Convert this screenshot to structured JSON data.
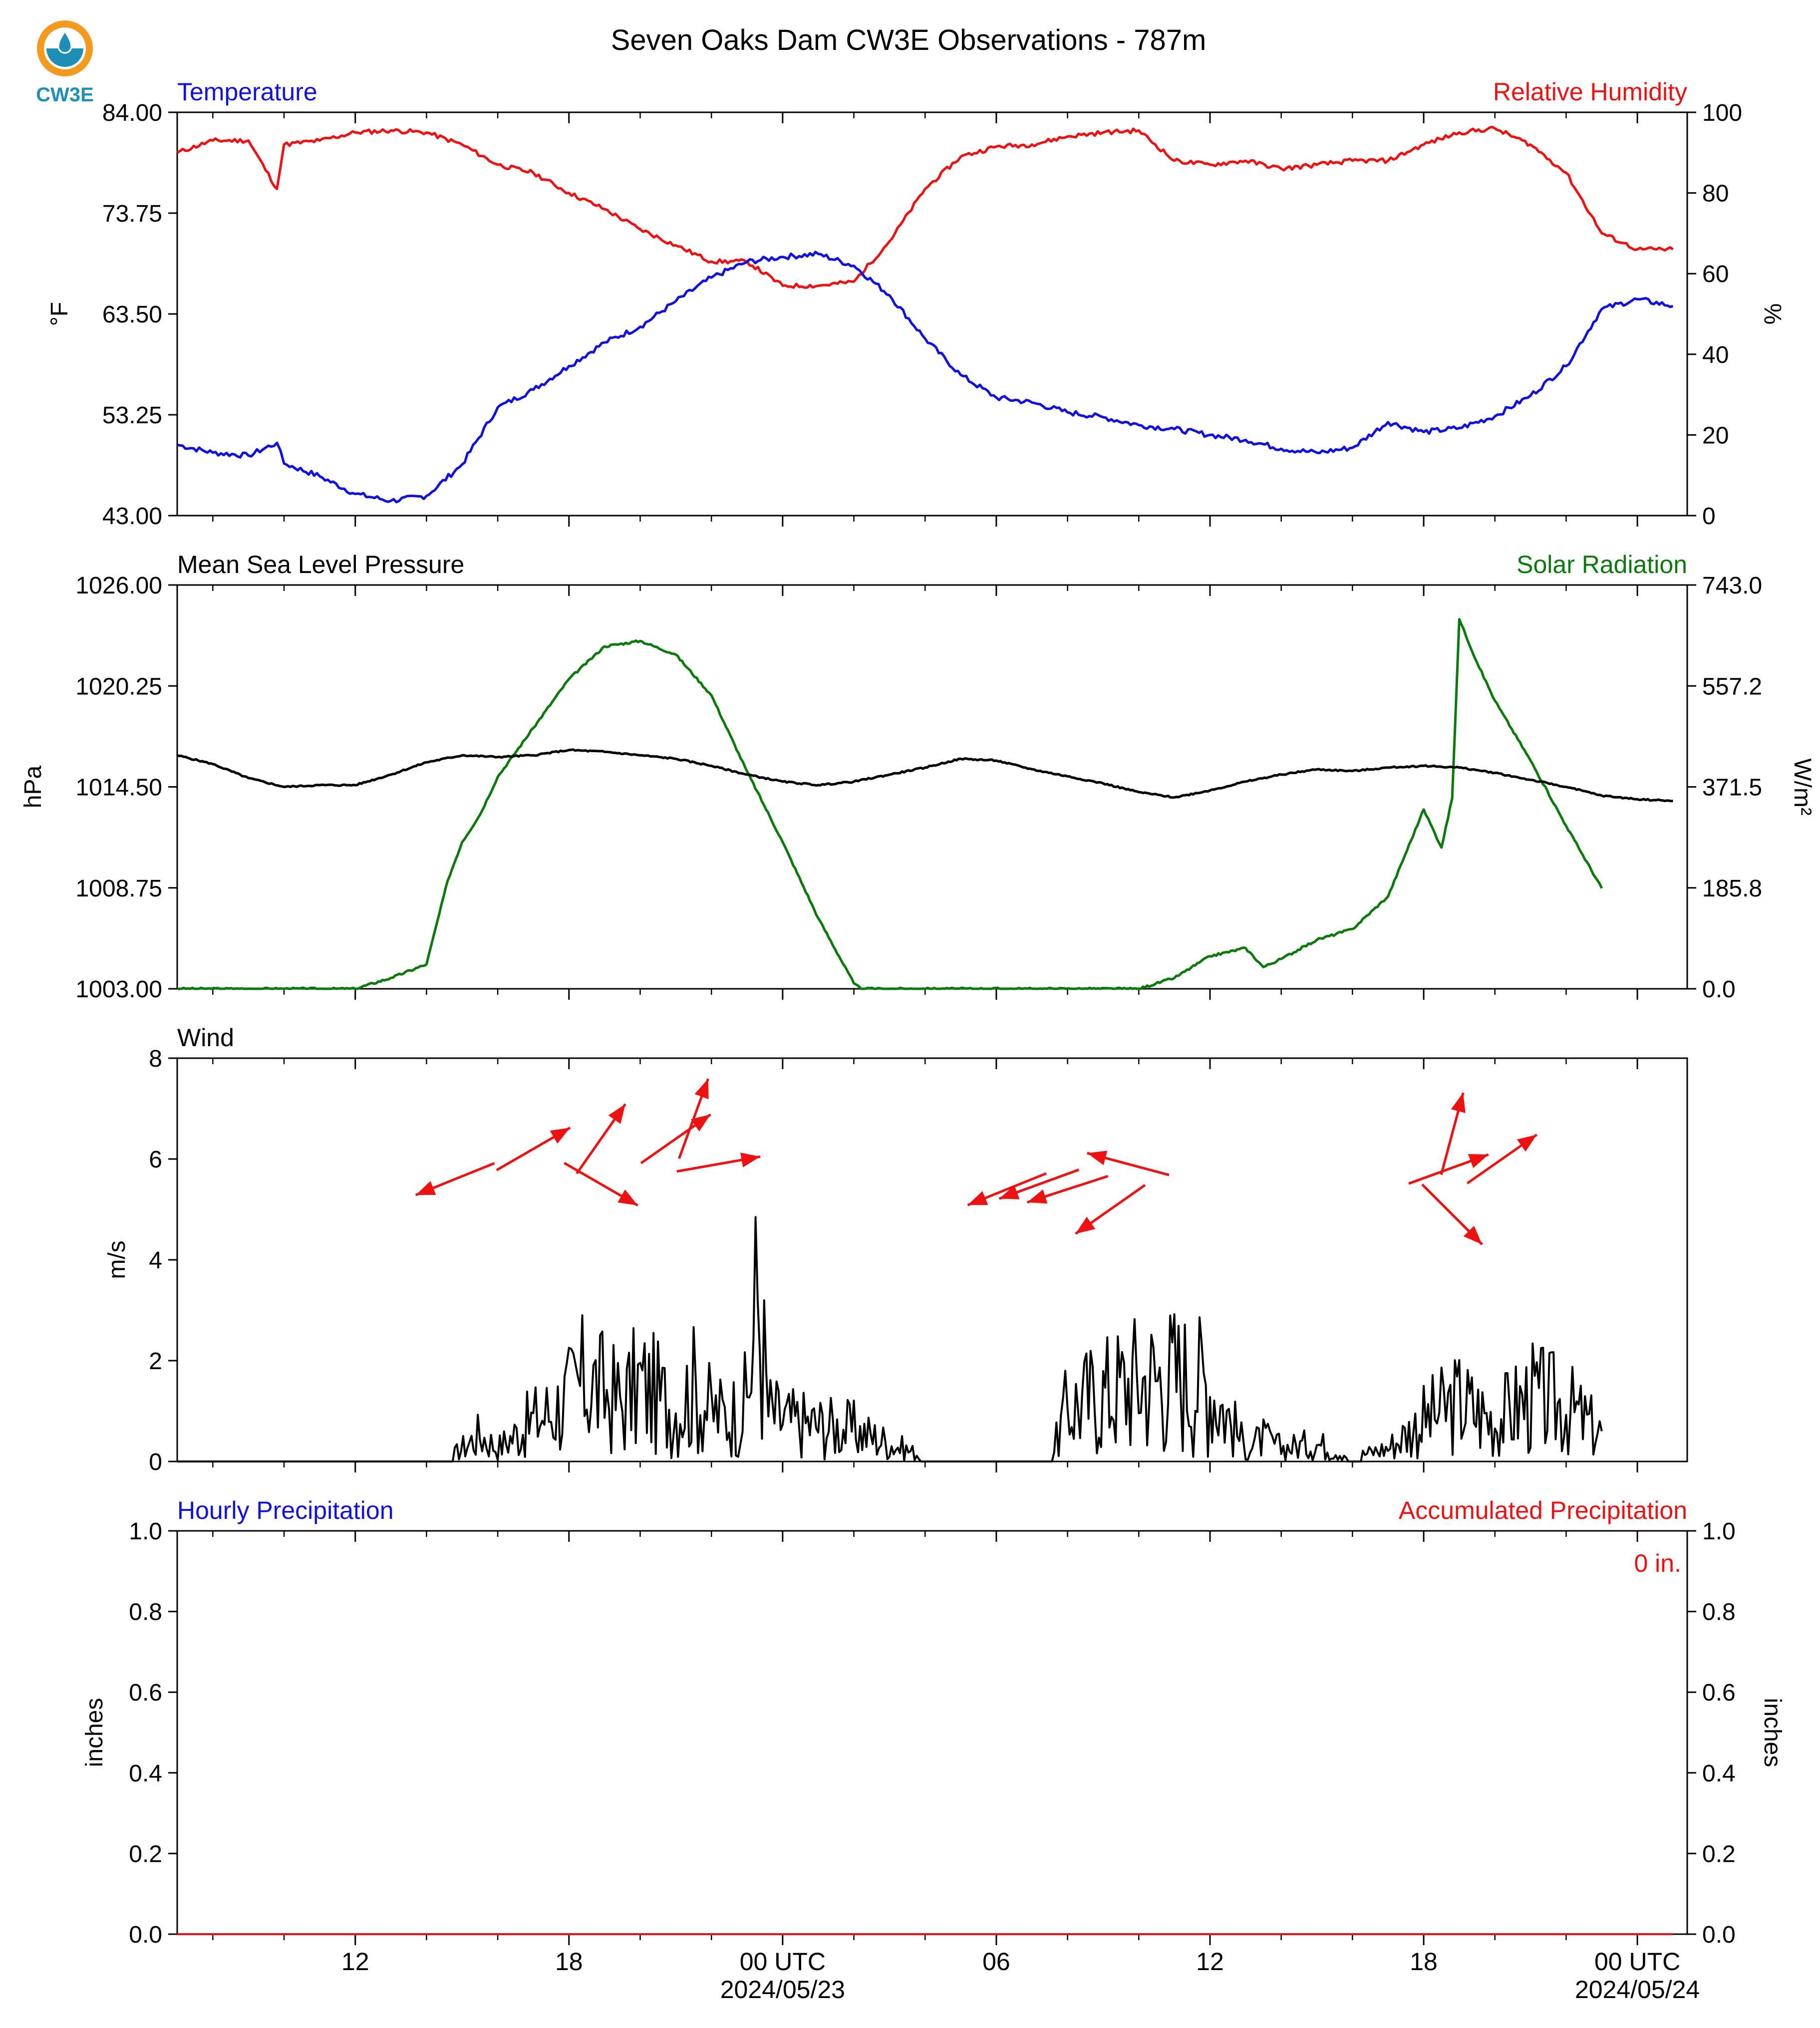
{
  "logo": {
    "text": "CW3E",
    "colors": {
      "orange": "#f39a1f",
      "teal": "#1f8fb8"
    }
  },
  "title": "Seven Oaks Dam CW3E Observations - 787m",
  "x_axis": {
    "tick_labels": [
      "12",
      "18",
      "00 UTC",
      "06",
      "12",
      "18",
      "00 UTC"
    ],
    "date_labels": [
      "2024/05/23",
      "2024/05/24"
    ]
  },
  "colors": {
    "blue": "#1010e0",
    "red": "#ee1111",
    "green": "#0a7a0a",
    "black": "#000000"
  },
  "chart_data": [
    {
      "type": "line",
      "panel": "temperature-humidity",
      "left_title": "Temperature",
      "right_title": "Relative Humidity",
      "ylabel": "°F",
      "y2label": "%",
      "ylim": [
        43,
        84
      ],
      "y2lim": [
        0,
        100
      ],
      "yticks": [
        "84.00",
        "73.75",
        "63.50",
        "53.25",
        "43.00"
      ],
      "y2ticks": [
        "100",
        "80",
        "60",
        "40",
        "20",
        "0"
      ],
      "grid": false,
      "x_hours": [
        7,
        8,
        9,
        9.8,
        10,
        11,
        12,
        13,
        14,
        15,
        16,
        17,
        18,
        19,
        20,
        21,
        22,
        23,
        24,
        25,
        26,
        27,
        28,
        29,
        30,
        31,
        32,
        33,
        34,
        35,
        36,
        37,
        38,
        39,
        40,
        41,
        42,
        43,
        44,
        45,
        46,
        47,
        48,
        49
      ],
      "series": [
        {
          "name": "Temperature",
          "axis": "left",
          "color": "#1010e0",
          "values": [
            50.2,
            49.4,
            49.1,
            50.4,
            48.3,
            47.0,
            45.2,
            44.5,
            45.0,
            48.2,
            54.0,
            55.8,
            58.2,
            60.6,
            62.2,
            64.8,
            67.2,
            68.8,
            69.3,
            69.6,
            68.4,
            65.4,
            61.0,
            57.3,
            55.0,
            54.5,
            53.5,
            53.0,
            52.2,
            51.8,
            51.2,
            50.7,
            49.8,
            49.4,
            49.9,
            52.5,
            51.5,
            51.9,
            53.1,
            55.2,
            58.2,
            64.0,
            65.0,
            64.3
          ]
        },
        {
          "name": "Relative Humidity",
          "axis": "right",
          "color": "#ee1111",
          "values": [
            90.0,
            93.0,
            93.0,
            81.0,
            92.0,
            93.0,
            95.0,
            95.5,
            95.0,
            92.0,
            87.0,
            85.0,
            80.0,
            76.0,
            71.0,
            67.0,
            63.0,
            63.0,
            57.0,
            57.0,
            58.0,
            68.0,
            81.0,
            89.0,
            91.5,
            92.0,
            94.0,
            95.0,
            95.5,
            88.0,
            87.0,
            88.0,
            86.0,
            87.0,
            88.0,
            88.0,
            92.0,
            95.0,
            96.0,
            92.0,
            85.0,
            70.0,
            66.0,
            66.0
          ]
        }
      ]
    },
    {
      "type": "line",
      "panel": "pressure-solar",
      "left_title": "Mean Sea Level Pressure",
      "right_title": "Solar Radiation",
      "ylabel": "hPa",
      "y2label": "W/m²",
      "ylim": [
        1003,
        1026
      ],
      "y2lim": [
        0,
        743
      ],
      "yticks": [
        "1026.00",
        "1020.25",
        "1014.50",
        "1008.75",
        "1003.00"
      ],
      "y2ticks": [
        "743.0",
        "557.2",
        "371.5",
        "185.8",
        "0.0"
      ],
      "grid": false,
      "series": [
        {
          "name": "Mean Sea Level Pressure",
          "axis": "left",
          "color": "#000000",
          "x_hours": [
            7,
            8,
            9,
            10,
            11,
            12,
            13,
            14,
            15,
            16,
            17,
            18,
            19,
            20,
            21,
            22,
            23,
            24,
            25,
            26,
            27,
            28,
            29,
            30,
            31,
            32,
            33,
            34,
            35,
            36,
            37,
            38,
            39,
            40,
            41,
            42,
            43,
            44,
            45,
            46,
            47,
            48,
            49
          ],
          "values": [
            1016.3,
            1015.8,
            1015.0,
            1014.5,
            1014.6,
            1014.6,
            1015.2,
            1015.9,
            1016.3,
            1016.2,
            1016.3,
            1016.6,
            1016.5,
            1016.3,
            1016.1,
            1015.7,
            1015.2,
            1014.8,
            1014.6,
            1014.8,
            1015.2,
            1015.6,
            1016.1,
            1016.0,
            1015.5,
            1015.1,
            1014.7,
            1014.2,
            1013.9,
            1014.3,
            1014.8,
            1015.2,
            1015.5,
            1015.4,
            1015.6,
            1015.7,
            1015.6,
            1015.3,
            1014.9,
            1014.5,
            1014.0,
            1013.8,
            1013.7
          ]
        },
        {
          "name": "Solar Radiation",
          "axis": "right",
          "color": "#0a7a0a",
          "x_hours": [
            7,
            12,
            13,
            14,
            14.6,
            15,
            15.5,
            16,
            17,
            18,
            19,
            20,
            21,
            22,
            23,
            24,
            25,
            26,
            26.2,
            27,
            31,
            34,
            35,
            36,
            37,
            37.5,
            38,
            39,
            40,
            41,
            42,
            42.5,
            42.8,
            43,
            43.5,
            44,
            45,
            46,
            47
          ],
          "values": [
            0,
            0,
            20,
            45,
            200,
            270,
            320,
            390,
            480,
            570,
            630,
            640,
            615,
            540,
            400,
            270,
            130,
            10,
            0,
            0,
            0,
            0,
            20,
            60,
            75,
            40,
            55,
            90,
            110,
            170,
            330,
            260,
            350,
            680,
            600,
            530,
            420,
            300,
            185
          ]
        }
      ]
    },
    {
      "type": "line",
      "panel": "wind",
      "left_title": "Wind",
      "ylabel": "m/s",
      "ylim": [
        0,
        8
      ],
      "yticks": [
        "8",
        "6",
        "4",
        "2",
        "0"
      ],
      "grid": false,
      "series": [
        {
          "name": "Wind Speed",
          "color": "#000000",
          "x_hours": [
            7,
            9,
            9.5,
            9.6,
            10,
            14.5,
            15.5,
            16,
            17,
            17.5,
            18,
            18.5,
            19,
            19.5,
            20,
            20.5,
            21,
            21.5,
            22,
            22.5,
            23,
            23.3,
            23.6,
            24,
            25,
            26,
            27,
            28,
            29,
            30,
            31,
            31.5,
            32,
            33,
            34,
            35,
            36,
            37,
            37.5,
            38,
            39,
            40,
            41,
            42,
            42.5,
            43,
            44,
            45,
            46,
            47
          ],
          "values": [
            0,
            0,
            0.15,
            0,
            0,
            0,
            0.6,
            0.3,
            0.9,
            1.1,
            1.4,
            1.8,
            1.5,
            1.3,
            1.7,
            1.4,
            1.2,
            1.6,
            1.1,
            1.0,
            1.3,
            3.7,
            1.1,
            0.9,
            0.8,
            0.7,
            0.4,
            0.1,
            0.1,
            0.1,
            0,
            0,
            1.2,
            1.5,
            1.8,
            1.9,
            1.7,
            0.3,
            0.5,
            0.3,
            0.4,
            0.1,
            0.3,
            0.9,
            1.1,
            1.3,
            0.9,
            1.4,
            1.2,
            0.6
          ]
        }
      ],
      "wind_barbs": [
        {
          "hour": 14.8,
          "speed": 5.6,
          "dir_deg": 248
        },
        {
          "hour": 17.0,
          "speed": 6.2,
          "dir_deg": 60
        },
        {
          "hour": 18.9,
          "speed": 6.4,
          "dir_deg": 35
        },
        {
          "hour": 18.9,
          "speed": 5.5,
          "dir_deg": 120
        },
        {
          "hour": 21.0,
          "speed": 6.4,
          "dir_deg": 55
        },
        {
          "hour": 21.5,
          "speed": 6.8,
          "dir_deg": 20
        },
        {
          "hour": 22.2,
          "speed": 5.9,
          "dir_deg": 80
        },
        {
          "hour": 30.3,
          "speed": 5.4,
          "dir_deg": 248
        },
        {
          "hour": 31.2,
          "speed": 5.5,
          "dir_deg": 250
        },
        {
          "hour": 32.0,
          "speed": 5.4,
          "dir_deg": 252
        },
        {
          "hour": 33.2,
          "speed": 5.0,
          "dir_deg": 235
        },
        {
          "hour": 33.7,
          "speed": 5.9,
          "dir_deg": 285
        },
        {
          "hour": 42.7,
          "speed": 5.8,
          "dir_deg": 70
        },
        {
          "hour": 42.8,
          "speed": 6.5,
          "dir_deg": 15
        },
        {
          "hour": 42.8,
          "speed": 4.9,
          "dir_deg": 135
        },
        {
          "hour": 44.2,
          "speed": 6.0,
          "dir_deg": 55
        }
      ]
    },
    {
      "type": "line",
      "panel": "precipitation",
      "left_title": "Hourly Precipitation",
      "right_title": "Accumulated Precipitation",
      "ylabel": "inches",
      "y2label": "inches",
      "ylim": [
        0,
        1
      ],
      "y2lim": [
        0,
        1
      ],
      "yticks": [
        "1.0",
        "0.8",
        "0.6",
        "0.4",
        "0.2",
        "0.0"
      ],
      "y2ticks": [
        "1.0",
        "0.8",
        "0.6",
        "0.4",
        "0.2",
        "0.0"
      ],
      "annotation": "0 in.",
      "grid": false,
      "series": [
        {
          "name": "Hourly Precipitation",
          "axis": "left",
          "color": "#1010e0",
          "x_hours": [
            7,
            49
          ],
          "values": [
            0,
            0
          ]
        },
        {
          "name": "Accumulated Precipitation",
          "axis": "right",
          "color": "#ee1111",
          "x_hours": [
            7,
            49
          ],
          "values": [
            0,
            0
          ]
        }
      ]
    }
  ]
}
